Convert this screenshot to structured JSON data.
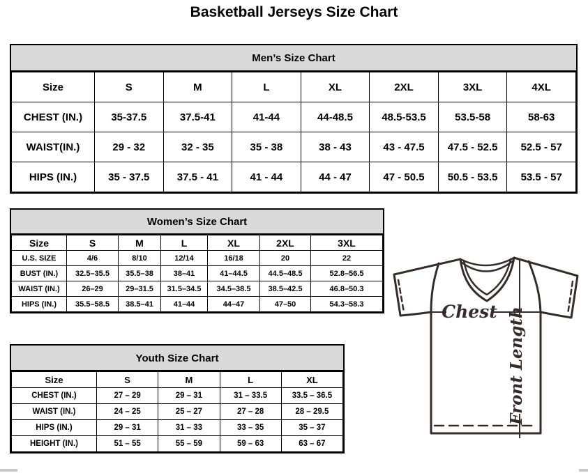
{
  "page_title": "Basketball Jerseys Size Chart",
  "men": {
    "title": "Men’s Size Chart",
    "header": [
      "Size",
      "S",
      "M",
      "L",
      "XL",
      "2XL",
      "3XL",
      "4XL"
    ],
    "rows": [
      [
        "CHEST (IN.)",
        "35-37.5",
        "37.5-41",
        "41-44",
        "44-48.5",
        "48.5-53.5",
        "53.5-58",
        "58-63"
      ],
      [
        "WAIST(IN.)",
        "29 - 32",
        "32 - 35",
        "35 - 38",
        "38 - 43",
        "43 - 47.5",
        "47.5 - 52.5",
        "52.5 - 57"
      ],
      [
        "HIPS (IN.)",
        "35 - 37.5",
        "37.5 - 41",
        "41 - 44",
        "44 - 47",
        "47 - 50.5",
        "50.5 - 53.5",
        "53.5 - 57"
      ]
    ]
  },
  "women": {
    "title": "Women’s Size Chart",
    "header": [
      "Size",
      "S",
      "M",
      "L",
      "XL",
      "2XL",
      "3XL"
    ],
    "rows": [
      [
        "U.S. SIZE",
        "4/6",
        "8/10",
        "12/14",
        "16/18",
        "20",
        "22"
      ],
      [
        "BUST (IN.)",
        "32.5–35.5",
        "35.5–38",
        "38–41",
        "41–44.5",
        "44.5–48.5",
        "52.8–56.5"
      ],
      [
        "WAIST (IN.)",
        "26–29",
        "29–31.5",
        "31.5–34.5",
        "34.5–38.5",
        "38.5–42.5",
        "46.8–50.3"
      ],
      [
        "HIPS (IN.)",
        "35.5–58.5",
        "38.5–41",
        "41–44",
        "44–47",
        "47–50",
        "54.3–58.3"
      ]
    ]
  },
  "youth": {
    "title": "Youth Size Chart",
    "header": [
      "Size",
      "S",
      "M",
      "L",
      "XL"
    ],
    "rows": [
      [
        "CHEST (IN.)",
        "27 – 29",
        "29 – 31",
        "31 – 33.5",
        "33.5 – 36.5"
      ],
      [
        "WAIST (IN.)",
        "24 – 25",
        "25 – 27",
        "27 – 28",
        "28 – 29.5"
      ],
      [
        "HIPS (IN.)",
        "29 – 31",
        "31 – 33",
        "33 – 35",
        "35 – 37"
      ],
      [
        "HEIGHT (IN.)",
        "51 – 55",
        "55 – 59",
        "59 – 63",
        "63 – 67"
      ]
    ]
  },
  "diagram": {
    "chest_label": "Chest",
    "front_length_label": "Front Length"
  },
  "colors": {
    "header_band": "#d9d9d9",
    "table_border": "#000000",
    "diagram_stroke": "#362b2b"
  }
}
